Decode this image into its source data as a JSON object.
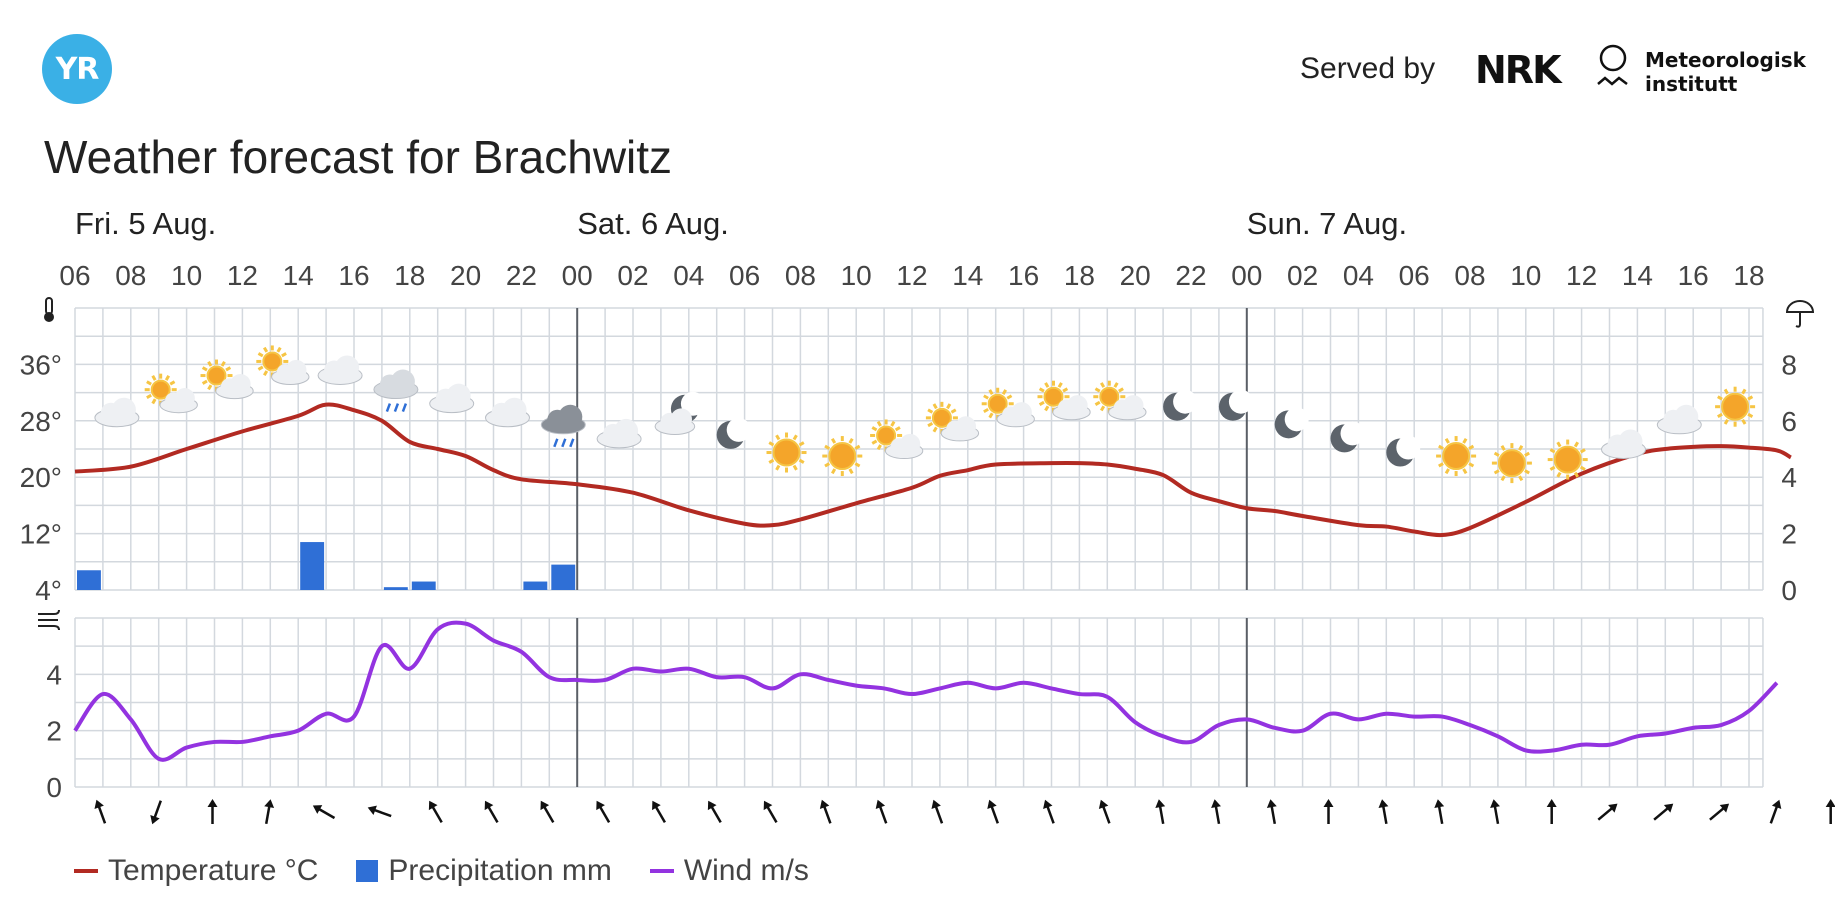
{
  "header": {
    "logo_text": "YR",
    "served_by": "Served by",
    "nrk_logo": "NRK",
    "met_name_line1": "Meteorologisk",
    "met_name_line2": "institutt",
    "title": "Weather forecast for Brachwitz"
  },
  "colors": {
    "temperature": "#b22a22",
    "precipitation": "#2f6fd6",
    "wind": "#9333e0",
    "grid": "#d3d8de",
    "logo": "#3ab0e6"
  },
  "legend": {
    "temperature": "Temperature °C",
    "precipitation": "Precipitation mm",
    "wind": "Wind m/s"
  },
  "chart_data": {
    "type": "line",
    "day_labels": [
      "Fri. 5 Aug.",
      "Sat. 6 Aug.",
      "Sun. 7 Aug."
    ],
    "hour_ticks": [
      "06",
      "08",
      "10",
      "12",
      "14",
      "16",
      "18",
      "20",
      "22",
      "00",
      "02",
      "04",
      "06",
      "08",
      "10",
      "12",
      "14",
      "16",
      "18",
      "20",
      "22",
      "00",
      "02",
      "04",
      "06",
      "08",
      "10",
      "12",
      "14",
      "16",
      "18"
    ],
    "temperature": {
      "unit": "°C",
      "y_ticks": [
        "4°",
        "12°",
        "20°",
        "28°",
        "36°"
      ],
      "ylim": [
        4,
        44
      ],
      "points": [
        [
          0,
          20.8
        ],
        [
          2,
          21.5
        ],
        [
          4,
          24
        ],
        [
          6,
          26.5
        ],
        [
          8,
          28.7
        ],
        [
          9,
          30.3
        ],
        [
          10,
          29.5
        ],
        [
          11,
          28
        ],
        [
          12,
          25
        ],
        [
          13,
          24
        ],
        [
          14,
          23
        ],
        [
          15,
          21
        ],
        [
          16,
          19.7
        ],
        [
          18,
          19
        ],
        [
          20,
          17.8
        ],
        [
          22,
          15.3
        ],
        [
          24,
          13.4
        ],
        [
          25,
          13.2
        ],
        [
          26,
          14
        ],
        [
          28,
          16.3
        ],
        [
          30,
          18.5
        ],
        [
          31,
          20.2
        ],
        [
          32,
          21
        ],
        [
          33,
          21.8
        ],
        [
          35,
          22
        ],
        [
          36,
          22
        ],
        [
          37,
          21.8
        ],
        [
          38,
          21.2
        ],
        [
          39,
          20.3
        ],
        [
          40,
          17.8
        ],
        [
          41,
          16.6
        ],
        [
          42,
          15.6
        ],
        [
          43,
          15.2
        ],
        [
          44,
          14.5
        ],
        [
          46,
          13.2
        ],
        [
          47,
          13
        ],
        [
          48,
          12.3
        ],
        [
          49,
          11.8
        ],
        [
          50,
          12.8
        ],
        [
          52,
          16.5
        ],
        [
          54,
          20.5
        ],
        [
          56,
          23.3
        ],
        [
          57,
          24
        ],
        [
          58,
          24.3
        ],
        [
          59,
          24.4
        ],
        [
          60,
          24.2
        ],
        [
          61,
          23.8
        ],
        [
          61.5,
          22.8
        ]
      ]
    },
    "precipitation": {
      "unit": "mm",
      "y_ticks": [
        "0",
        "2",
        "4",
        "6",
        "8"
      ],
      "ylim": [
        0,
        10
      ],
      "bars": [
        [
          0,
          0.7
        ],
        [
          8,
          1.7
        ],
        [
          11,
          0.1
        ],
        [
          12,
          0.3
        ],
        [
          16,
          0.3
        ],
        [
          17,
          0.9
        ]
      ]
    },
    "wind": {
      "unit": "m/s",
      "y_ticks": [
        "0",
        "2",
        "4"
      ],
      "ylim": [
        0,
        6
      ],
      "points": [
        [
          0,
          2
        ],
        [
          1,
          3.3
        ],
        [
          2,
          2.4
        ],
        [
          3,
          1
        ],
        [
          4,
          1.4
        ],
        [
          5,
          1.6
        ],
        [
          6,
          1.6
        ],
        [
          7,
          1.8
        ],
        [
          8,
          2
        ],
        [
          9,
          2.6
        ],
        [
          10,
          2.5
        ],
        [
          11,
          5
        ],
        [
          12,
          4.2
        ],
        [
          13,
          5.6
        ],
        [
          14,
          5.8
        ],
        [
          15,
          5.2
        ],
        [
          16,
          4.8
        ],
        [
          17,
          3.9
        ],
        [
          18,
          3.8
        ],
        [
          19,
          3.8
        ],
        [
          20,
          4.2
        ],
        [
          21,
          4.1
        ],
        [
          22,
          4.2
        ],
        [
          23,
          3.9
        ],
        [
          24,
          3.9
        ],
        [
          25,
          3.5
        ],
        [
          26,
          4
        ],
        [
          27,
          3.8
        ],
        [
          28,
          3.6
        ],
        [
          29,
          3.5
        ],
        [
          30,
          3.3
        ],
        [
          31,
          3.5
        ],
        [
          32,
          3.7
        ],
        [
          33,
          3.5
        ],
        [
          34,
          3.7
        ],
        [
          35,
          3.5
        ],
        [
          36,
          3.3
        ],
        [
          37,
          3.2
        ],
        [
          38,
          2.3
        ],
        [
          39,
          1.8
        ],
        [
          40,
          1.6
        ],
        [
          41,
          2.2
        ],
        [
          42,
          2.4
        ],
        [
          43,
          2.1
        ],
        [
          44,
          2
        ],
        [
          45,
          2.6
        ],
        [
          46,
          2.4
        ],
        [
          47,
          2.6
        ],
        [
          48,
          2.5
        ],
        [
          49,
          2.5
        ],
        [
          50,
          2.2
        ],
        [
          51,
          1.8
        ],
        [
          52,
          1.3
        ],
        [
          53,
          1.3
        ],
        [
          54,
          1.5
        ],
        [
          55,
          1.5
        ],
        [
          56,
          1.8
        ],
        [
          57,
          1.9
        ],
        [
          58,
          2.1
        ],
        [
          59,
          2.2
        ],
        [
          60,
          2.7
        ],
        [
          61,
          3.7
        ]
      ]
    },
    "wind_direction_arrows_deg": [
      160,
      20,
      180,
      190,
      120,
      110,
      150,
      150,
      150,
      150,
      150,
      150,
      150,
      160,
      160,
      160,
      160,
      160,
      160,
      170,
      170,
      170,
      180,
      170,
      170,
      170,
      180,
      230,
      230,
      230,
      200,
      180
    ],
    "symbols": [
      {
        "col": 1,
        "icon": "cloud"
      },
      {
        "col": 3,
        "icon": "partly-sunny"
      },
      {
        "col": 5,
        "icon": "partly-sunny"
      },
      {
        "col": 7,
        "icon": "partly-sunny"
      },
      {
        "col": 9,
        "icon": "cloud"
      },
      {
        "col": 11,
        "icon": "rain"
      },
      {
        "col": 13,
        "icon": "cloud"
      },
      {
        "col": 15,
        "icon": "cloud"
      },
      {
        "col": 17,
        "icon": "rain-dark"
      },
      {
        "col": 19,
        "icon": "cloud"
      },
      {
        "col": 21,
        "icon": "partly-night"
      },
      {
        "col": 23,
        "icon": "moon"
      },
      {
        "col": 25,
        "icon": "sun"
      },
      {
        "col": 27,
        "icon": "sun"
      },
      {
        "col": 29,
        "icon": "partly-sunny"
      },
      {
        "col": 31,
        "icon": "partly-sunny"
      },
      {
        "col": 33,
        "icon": "partly-sunny"
      },
      {
        "col": 35,
        "icon": "partly-sunny"
      },
      {
        "col": 37,
        "icon": "partly-sunny"
      },
      {
        "col": 39,
        "icon": "moon"
      },
      {
        "col": 41,
        "icon": "moon"
      },
      {
        "col": 43,
        "icon": "moon"
      },
      {
        "col": 45,
        "icon": "moon"
      },
      {
        "col": 47,
        "icon": "moon"
      },
      {
        "col": 49,
        "icon": "sun"
      },
      {
        "col": 51,
        "icon": "sun"
      },
      {
        "col": 53,
        "icon": "sun"
      },
      {
        "col": 55,
        "icon": "cloud"
      },
      {
        "col": 57,
        "icon": "cloud"
      },
      {
        "col": 59,
        "icon": "sun"
      }
    ],
    "symbol_levels_c": [
      29,
      31,
      33,
      35,
      35,
      33,
      31,
      29,
      28,
      26,
      28,
      26,
      23.5,
      23,
      24.5,
      27,
      29,
      30,
      30,
      30,
      30,
      27.5,
      25.5,
      23.5,
      23,
      22,
      22.5,
      24.5,
      28,
      30,
      31,
      31
    ]
  }
}
